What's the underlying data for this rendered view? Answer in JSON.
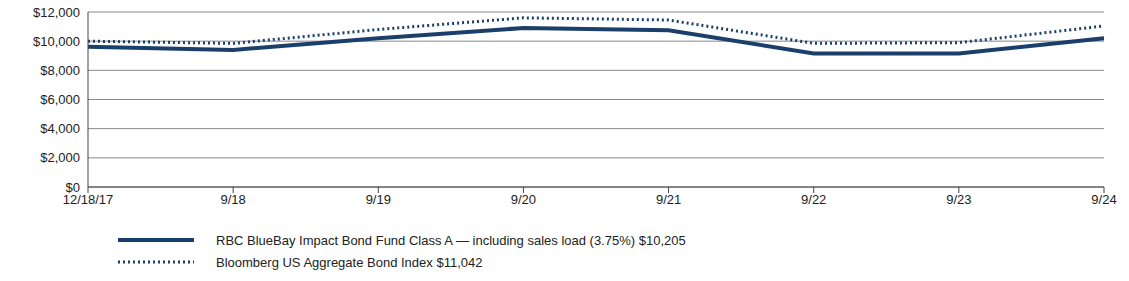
{
  "chart_data": {
    "type": "line",
    "categories": [
      "12/18/17",
      "9/18",
      "9/19",
      "9/20",
      "9/21",
      "9/22",
      "9/23",
      "9/24"
    ],
    "series": [
      {
        "name": "RBC BlueBay Impact Bond Fund Class A — including sales load (3.75%) $10,205",
        "color": "#1b3f6b",
        "line_style": "solid",
        "values": [
          9625,
          9400,
          10200,
          10900,
          10750,
          9150,
          9150,
          10205
        ]
      },
      {
        "name": "Bloomberg US Aggregate Bond Index $11,042",
        "color": "#1b3f6b",
        "line_style": "dotted",
        "values": [
          10000,
          9850,
          10800,
          11600,
          11450,
          9850,
          9900,
          11042
        ]
      }
    ],
    "ylim": [
      0,
      12000
    ],
    "yticks": [
      {
        "value": 0,
        "label": "$0"
      },
      {
        "value": 2000,
        "label": "$2,000"
      },
      {
        "value": 4000,
        "label": "$4,000"
      },
      {
        "value": 6000,
        "label": "$6,000"
      },
      {
        "value": 8000,
        "label": "$8,000"
      },
      {
        "value": 10000,
        "label": "$10,000"
      },
      {
        "value": 12000,
        "label": "$12,000"
      }
    ],
    "grid": true
  }
}
